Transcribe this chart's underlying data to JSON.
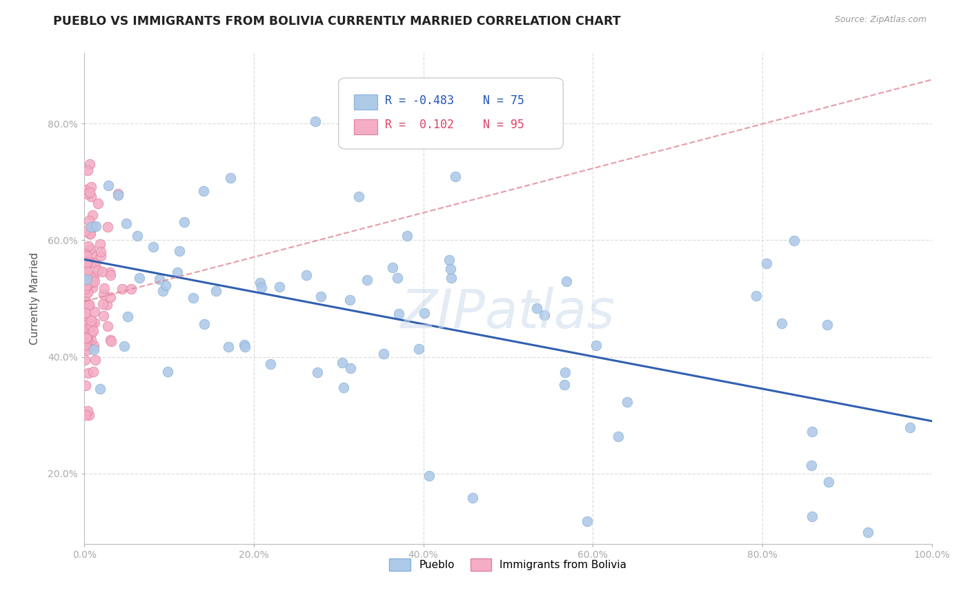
{
  "title": "PUEBLO VS IMMIGRANTS FROM BOLIVIA CURRENTLY MARRIED CORRELATION CHART",
  "source": "Source: ZipAtlas.com",
  "ylabel": "Currently Married",
  "legend_blue_r": "R = -0.483",
  "legend_blue_n": "N = 75",
  "legend_pink_r": "R =  0.102",
  "legend_pink_n": "N = 95",
  "legend_blue_label": "Pueblo",
  "legend_pink_label": "Immigrants from Bolivia",
  "blue_color": "#adc9e8",
  "blue_edge_color": "#8ab0d8",
  "blue_line_color": "#3060b0",
  "pink_color": "#f4adc4",
  "pink_edge_color": "#e080a0",
  "pink_line_color": "#e08898",
  "watermark": "ZIPatlas",
  "xlim": [
    0.0,
    1.0
  ],
  "ylim": [
    0.08,
    0.92
  ],
  "xticks": [
    0.0,
    0.2,
    0.4,
    0.6,
    0.8,
    1.0
  ],
  "xlabels": [
    "0.0%",
    "20.0%",
    "40.0%",
    "60.0%",
    "80.0%",
    "100.0%"
  ],
  "yticks": [
    0.2,
    0.4,
    0.6,
    0.8
  ],
  "ylabels": [
    "20.0%",
    "40.0%",
    "60.0%",
    "80.0%"
  ],
  "grid_color": "#dddddd",
  "blue_intercept": 0.475,
  "blue_slope": -0.195,
  "pink_intercept": 0.495,
  "pink_slope": 0.38
}
